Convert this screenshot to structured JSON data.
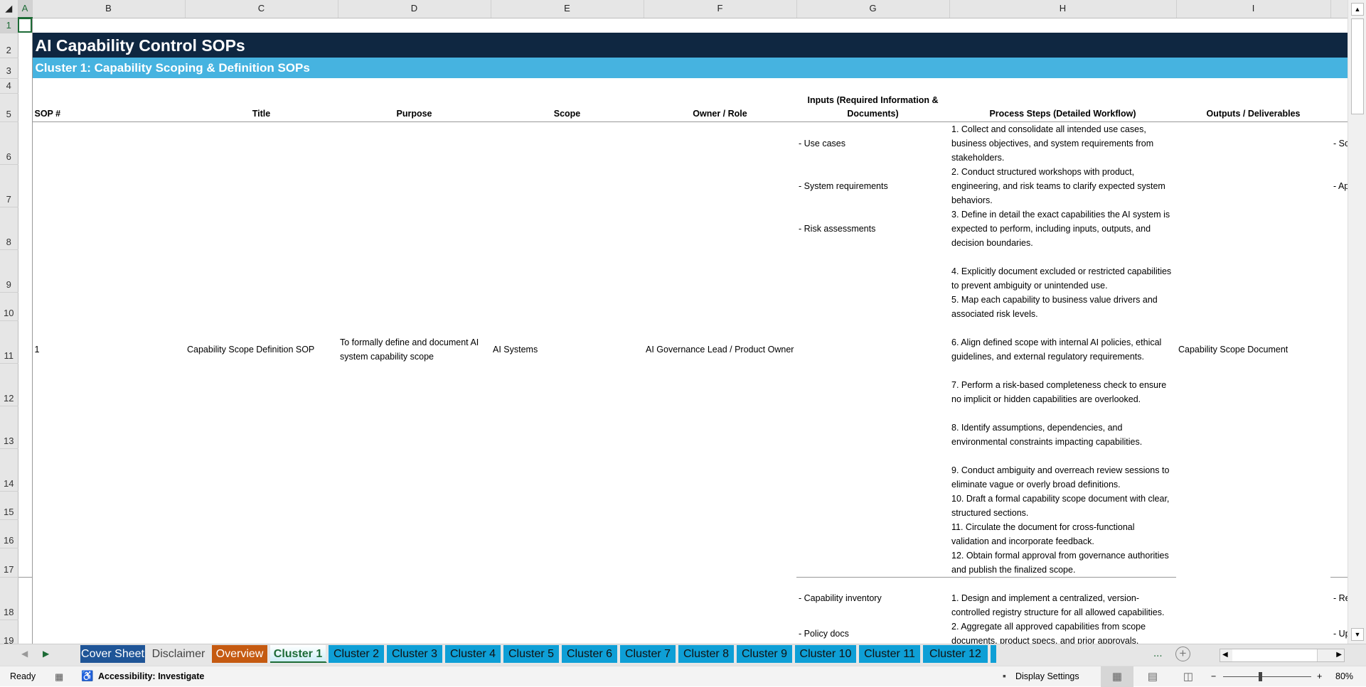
{
  "columns": [
    "A",
    "B",
    "C",
    "D",
    "E",
    "F",
    "G",
    "H",
    "I"
  ],
  "rows": [
    "1",
    "2",
    "3",
    "4",
    "5",
    "6",
    "7",
    "8",
    "9",
    "10",
    "11",
    "12",
    "13",
    "14",
    "15",
    "16",
    "17",
    "18",
    "19"
  ],
  "sheet": {
    "title": "AI Capability Control SOPs",
    "subtitle": "Cluster 1: Capability Scoping & Definition SOPs",
    "headers": {
      "sop": "SOP #",
      "title": "Title",
      "purpose": "Purpose",
      "scope": "Scope",
      "owner": "Owner / Role",
      "inputs": "Inputs (Required Information & Documents)",
      "steps": "Process Steps (Detailed Workflow)",
      "outputs": "Outputs / Deliverables"
    },
    "sop1": {
      "number": "1",
      "title": "Capability Scope Definition SOP",
      "purpose": "To formally define and document AI system capability scope",
      "scope": "AI Systems",
      "owner": "AI Governance Lead / Product Owner",
      "inputs": [
        "- Use cases",
        "- System requirements",
        "- Risk assessments"
      ],
      "steps": [
        "1. Collect and consolidate all intended use cases, business objectives, and system requirements from stakeholders.",
        "2. Conduct structured workshops with product, engineering, and risk teams to clarify expected system behaviors.",
        "3. Define in detail the exact capabilities the AI system is expected to perform, including inputs, outputs, and decision boundaries.",
        "4. Explicitly document excluded or restricted capabilities to prevent ambiguity or unintended use.",
        "5. Map each capability to business value drivers and associated risk levels.",
        "6. Align defined scope with internal AI policies, ethical guidelines, and external regulatory requirements.",
        "7. Perform a risk-based completeness check to ensure no implicit or hidden capabilities are overlooked.",
        "8. Identify assumptions, dependencies, and environmental constraints impacting capabilities.",
        "9. Conduct ambiguity and overreach review sessions to eliminate vague or overly broad definitions.",
        "10. Draft a formal capability scope document with clear, structured sections.",
        "11. Circulate the document for cross-functional validation and incorporate feedback.",
        "12. Obtain formal approval from governance authorities and publish the finalized scope."
      ],
      "outputs": "Capability Scope Document",
      "next_col_partial": [
        "- Sc",
        "- Ap"
      ]
    },
    "sop2": {
      "inputs": [
        "- Capability inventory",
        "- Policy docs"
      ],
      "steps": [
        "1. Design and implement a centralized, version-controlled registry structure for all allowed capabilities.",
        "2. Aggregate all approved capabilities from scope documents, product specs, and prior approvals."
      ],
      "next_col_partial": [
        "- Re",
        "- Up"
      ]
    }
  },
  "tabs": [
    {
      "label": "Cover Sheet",
      "color": "#1f5597",
      "text": "#ffffff"
    },
    {
      "label": "Disclaimer",
      "color": "#e6e6e6",
      "text": "#444444"
    },
    {
      "label": "Overview",
      "color": "#c55a11",
      "text": "#ffffff"
    },
    {
      "label": "Cluster 1",
      "color": "#cdeef6",
      "text": "#1d6b36",
      "active": true
    },
    {
      "label": "Cluster 2",
      "color": "#0e9fd6",
      "text": "#111111"
    },
    {
      "label": "Cluster 3",
      "color": "#0e9fd6",
      "text": "#111111"
    },
    {
      "label": "Cluster 4",
      "color": "#0e9fd6",
      "text": "#111111"
    },
    {
      "label": "Cluster 5",
      "color": "#0e9fd6",
      "text": "#111111"
    },
    {
      "label": "Cluster 6",
      "color": "#0e9fd6",
      "text": "#111111"
    },
    {
      "label": "Cluster 7",
      "color": "#0e9fd6",
      "text": "#111111"
    },
    {
      "label": "Cluster 8",
      "color": "#0e9fd6",
      "text": "#111111"
    },
    {
      "label": "Cluster 9",
      "color": "#0e9fd6",
      "text": "#111111"
    },
    {
      "label": "Cluster 10",
      "color": "#0e9fd6",
      "text": "#111111"
    },
    {
      "label": "Cluster 11",
      "color": "#0e9fd6",
      "text": "#111111"
    },
    {
      "label": "Cluster 12",
      "color": "#0e9fd6",
      "text": "#111111"
    }
  ],
  "tabbar": {
    "more": "...",
    "add": "+"
  },
  "status": {
    "ready": "Ready",
    "accessibility": "Accessibility: Investigate",
    "display_settings": "Display Settings",
    "zoom": "80%",
    "zoom_level_percent": 80
  }
}
